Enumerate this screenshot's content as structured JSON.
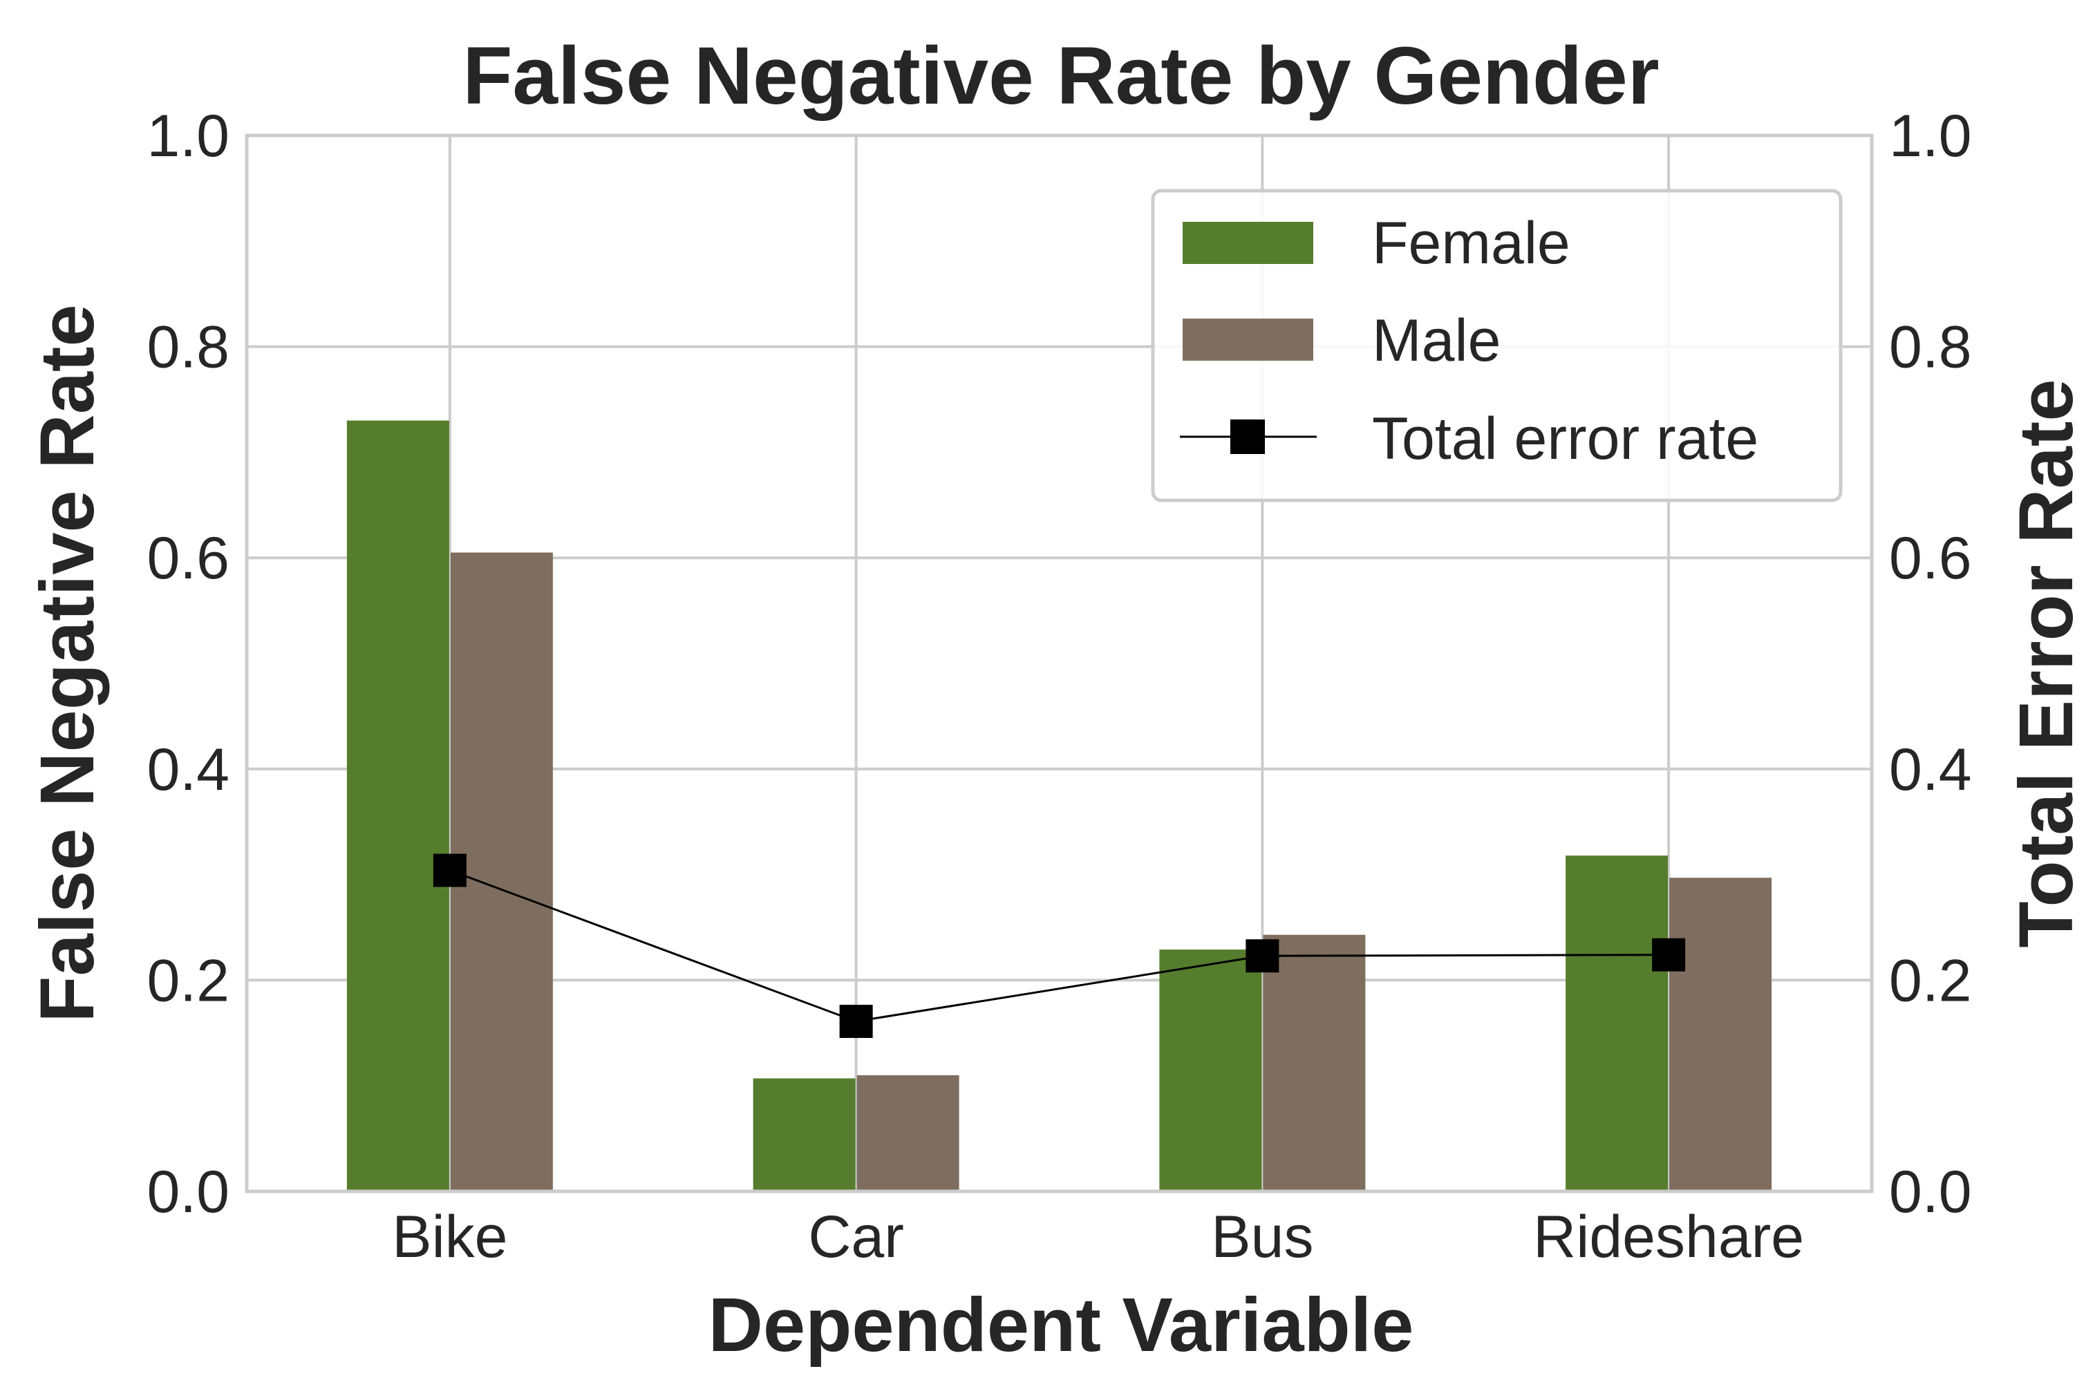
{
  "chart_data": {
    "type": "bar",
    "title": "False Negative Rate by Gender",
    "xlabel": "Dependent Variable",
    "ylabel": "False Negative Rate",
    "ylabel_right": "Total Error Rate",
    "categories": [
      "Bike",
      "Car",
      "Bus",
      "Rideshare"
    ],
    "ylim": [
      0,
      1
    ],
    "ylim_right": [
      0,
      1
    ],
    "yticks": [
      "0.0",
      "0.2",
      "0.4",
      "0.6",
      "0.8",
      "1.0"
    ],
    "grid": true,
    "legend_position": "top-right",
    "series": [
      {
        "name": "Female",
        "type": "bar",
        "color": "#567d2d",
        "values": [
          0.73,
          0.107,
          0.229,
          0.318
        ]
      },
      {
        "name": "Male",
        "type": "bar",
        "color": "#7f6e5f",
        "values": [
          0.605,
          0.11,
          0.243,
          0.297
        ]
      },
      {
        "name": "Total error rate",
        "type": "line",
        "axis": "right",
        "marker": "square",
        "color": "#000000",
        "values": [
          0.304,
          0.161,
          0.223,
          0.224
        ]
      }
    ]
  }
}
